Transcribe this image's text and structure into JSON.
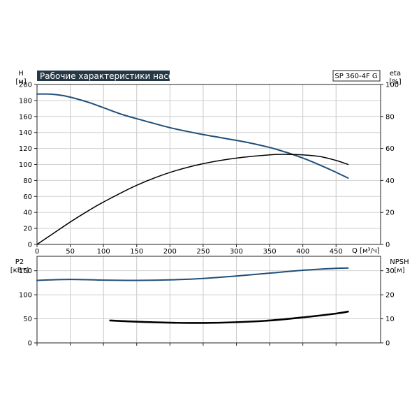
{
  "chart_data": [
    {
      "type": "line",
      "title": "Рабочие характеристики насоса",
      "model": "SP 360-4F G",
      "xlabel": "Q [м³/ч]",
      "xlim": [
        0,
        517
      ],
      "x_ticks": [
        0,
        50,
        100,
        150,
        200,
        250,
        300,
        350,
        400,
        450
      ],
      "ylabel_left": [
        "H",
        "[м]"
      ],
      "ylim_left": [
        0,
        200
      ],
      "y_ticks_left": [
        0,
        20,
        40,
        60,
        80,
        100,
        120,
        140,
        160,
        180,
        200
      ],
      "ylabel_right": [
        "eta",
        "[%]"
      ],
      "ylim_right": [
        0,
        100
      ],
      "y_ticks_right": [
        0,
        20,
        40,
        60,
        80,
        100
      ],
      "grid": true,
      "series": [
        {
          "axis": "left",
          "color": "#1f4e79",
          "x": [
            0,
            20,
            40,
            60,
            80,
            100,
            130,
            160,
            200,
            240,
            280,
            320,
            360,
            400,
            440,
            468
          ],
          "y": [
            188,
            188,
            186,
            182,
            177,
            171,
            162,
            155,
            146,
            139,
            133,
            127,
            119,
            108,
            94,
            83
          ]
        },
        {
          "axis": "right",
          "color": "#000000",
          "x": [
            0,
            25,
            50,
            75,
            100,
            150,
            200,
            250,
            300,
            350,
            375,
            400,
            425,
            450,
            468
          ],
          "y": [
            0,
            7,
            14,
            20.5,
            26.5,
            37,
            45,
            50.5,
            54,
            56,
            56.3,
            56,
            55,
            52.5,
            50
          ]
        }
      ]
    },
    {
      "type": "line",
      "xlim": [
        0,
        517
      ],
      "ylabel_left": [
        "P2",
        "[кВт]"
      ],
      "ylim_left": [
        0,
        180
      ],
      "y_ticks_left": [
        0,
        50,
        100,
        150
      ],
      "ylabel_right": [
        "NPSH",
        "[м]"
      ],
      "ylim_right": [
        0,
        36
      ],
      "y_ticks_right": [
        0,
        10,
        20,
        30
      ],
      "grid": true,
      "series": [
        {
          "axis": "left",
          "color": "#1f4e79",
          "x": [
            0,
            50,
            100,
            150,
            200,
            250,
            300,
            350,
            400,
            450,
            468
          ],
          "y": [
            130,
            132,
            130.5,
            130,
            131,
            134,
            139,
            145,
            151,
            155,
            155.5
          ]
        },
        {
          "axis": "right",
          "color": "#000000",
          "x": [
            110,
            150,
            200,
            250,
            300,
            350,
            400,
            450,
            468
          ],
          "y": [
            9.3,
            8.8,
            8.4,
            8.3,
            8.6,
            9.3,
            10.6,
            12.2,
            13.0
          ]
        }
      ]
    }
  ]
}
